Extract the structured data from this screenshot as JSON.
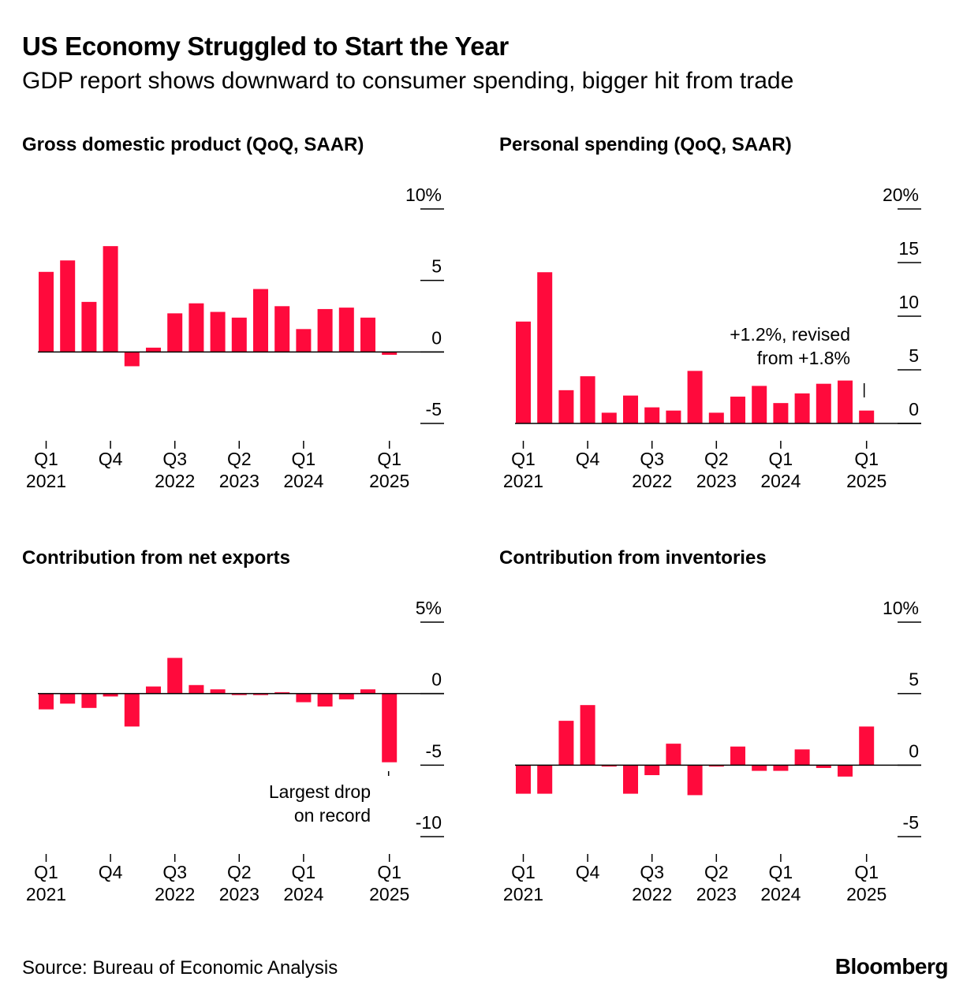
{
  "header": {
    "title": "US Economy Struggled to Start the Year",
    "subtitle": "GDP report shows downward to consumer spending, bigger hit from trade"
  },
  "footer": {
    "source": "Source: Bureau of Economic Analysis",
    "brand": "Bloomberg"
  },
  "colors": {
    "bar": "#ff0a3c",
    "axis": "#000000",
    "text": "#000000"
  },
  "chart_data": [
    {
      "type": "bar",
      "title": "Gross domestic product (QoQ, SAAR)",
      "categories": [
        "Q1 2021",
        "Q2 2021",
        "Q3 2021",
        "Q4 2021",
        "Q1 2022",
        "Q2 2022",
        "Q3 2022",
        "Q4 2022",
        "Q1 2023",
        "Q2 2023",
        "Q3 2023",
        "Q4 2023",
        "Q1 2024",
        "Q2 2024",
        "Q3 2024",
        "Q4 2024",
        "Q1 2025"
      ],
      "values": [
        5.6,
        6.4,
        3.5,
        7.4,
        -1.0,
        0.3,
        2.7,
        3.4,
        2.8,
        2.4,
        4.4,
        3.2,
        1.6,
        3.0,
        3.1,
        2.4,
        -0.2
      ],
      "ylim": [
        -5,
        10
      ],
      "yticks": [
        10,
        5,
        0,
        -5
      ],
      "ytick_labels": [
        "10%",
        "5",
        "0",
        "-5"
      ],
      "x_tick_labels": [
        {
          "index": 0,
          "quarter": "Q1",
          "year": "2021"
        },
        {
          "index": 3,
          "quarter": "Q4",
          "year": ""
        },
        {
          "index": 6,
          "quarter": "Q3",
          "year": "2022"
        },
        {
          "index": 9,
          "quarter": "Q2",
          "year": "2023"
        },
        {
          "index": 12,
          "quarter": "Q1",
          "year": "2024"
        },
        {
          "index": 16,
          "quarter": "Q1",
          "year": "2025"
        }
      ],
      "annotation": null
    },
    {
      "type": "bar",
      "title": "Personal spending (QoQ, SAAR)",
      "categories": [
        "Q1 2021",
        "Q2 2021",
        "Q3 2021",
        "Q4 2021",
        "Q1 2022",
        "Q2 2022",
        "Q3 2022",
        "Q4 2022",
        "Q1 2023",
        "Q2 2023",
        "Q3 2023",
        "Q4 2023",
        "Q1 2024",
        "Q2 2024",
        "Q3 2024",
        "Q4 2024",
        "Q1 2025"
      ],
      "values": [
        9.5,
        14.1,
        3.1,
        4.4,
        1.0,
        2.6,
        1.5,
        1.2,
        4.9,
        1.0,
        2.5,
        3.5,
        1.9,
        2.8,
        3.7,
        4.0,
        1.2
      ],
      "ylim": [
        0,
        20
      ],
      "yticks": [
        20,
        15,
        10,
        5,
        0
      ],
      "ytick_labels": [
        "20%",
        "15",
        "10",
        "5",
        "0"
      ],
      "x_tick_labels": [
        {
          "index": 0,
          "quarter": "Q1",
          "year": "2021"
        },
        {
          "index": 3,
          "quarter": "Q4",
          "year": ""
        },
        {
          "index": 6,
          "quarter": "Q3",
          "year": "2022"
        },
        {
          "index": 9,
          "quarter": "Q2",
          "year": "2023"
        },
        {
          "index": 12,
          "quarter": "Q1",
          "year": "2024"
        },
        {
          "index": 16,
          "quarter": "Q1",
          "year": "2025"
        }
      ],
      "annotation": {
        "index": 16,
        "lines": [
          "+1.2%, revised",
          "from +1.8%"
        ]
      }
    },
    {
      "type": "bar",
      "title": "Contribution from net exports",
      "categories": [
        "Q1 2021",
        "Q2 2021",
        "Q3 2021",
        "Q4 2021",
        "Q1 2022",
        "Q2 2022",
        "Q3 2022",
        "Q4 2022",
        "Q1 2023",
        "Q2 2023",
        "Q3 2023",
        "Q4 2023",
        "Q1 2024",
        "Q2 2024",
        "Q3 2024",
        "Q4 2024",
        "Q1 2025"
      ],
      "values": [
        -1.1,
        -0.7,
        -1.0,
        -0.2,
        -2.3,
        0.5,
        2.5,
        0.6,
        0.3,
        -0.1,
        -0.1,
        0.1,
        -0.6,
        -0.9,
        -0.4,
        0.3,
        -4.8
      ],
      "ylim": [
        -10,
        5
      ],
      "yticks": [
        5,
        0,
        -5,
        -10
      ],
      "ytick_labels": [
        "5%",
        "0",
        "-5",
        "-10"
      ],
      "x_tick_labels": [
        {
          "index": 0,
          "quarter": "Q1",
          "year": "2021"
        },
        {
          "index": 3,
          "quarter": "Q4",
          "year": ""
        },
        {
          "index": 6,
          "quarter": "Q3",
          "year": "2022"
        },
        {
          "index": 9,
          "quarter": "Q2",
          "year": "2023"
        },
        {
          "index": 12,
          "quarter": "Q1",
          "year": "2024"
        },
        {
          "index": 16,
          "quarter": "Q1",
          "year": "2025"
        }
      ],
      "annotation": {
        "index": 16,
        "lines": [
          "Largest drop",
          "on record"
        ]
      }
    },
    {
      "type": "bar",
      "title": "Contribution from inventories",
      "categories": [
        "Q1 2021",
        "Q2 2021",
        "Q3 2021",
        "Q4 2021",
        "Q1 2022",
        "Q2 2022",
        "Q3 2022",
        "Q4 2022",
        "Q1 2023",
        "Q2 2023",
        "Q3 2023",
        "Q4 2023",
        "Q1 2024",
        "Q2 2024",
        "Q3 2024",
        "Q4 2024",
        "Q1 2025"
      ],
      "values": [
        -2.0,
        -2.0,
        3.1,
        4.2,
        -0.1,
        -2.0,
        -0.7,
        1.5,
        -2.1,
        -0.1,
        1.3,
        -0.4,
        -0.4,
        1.1,
        -0.2,
        -0.8,
        2.7
      ],
      "ylim": [
        -5,
        10
      ],
      "yticks": [
        10,
        5,
        0,
        -5
      ],
      "ytick_labels": [
        "10%",
        "5",
        "0",
        "-5"
      ],
      "x_tick_labels": [
        {
          "index": 0,
          "quarter": "Q1",
          "year": "2021"
        },
        {
          "index": 3,
          "quarter": "Q4",
          "year": ""
        },
        {
          "index": 6,
          "quarter": "Q3",
          "year": "2022"
        },
        {
          "index": 9,
          "quarter": "Q2",
          "year": "2023"
        },
        {
          "index": 12,
          "quarter": "Q1",
          "year": "2024"
        },
        {
          "index": 16,
          "quarter": "Q1",
          "year": "2025"
        }
      ],
      "annotation": null
    }
  ]
}
